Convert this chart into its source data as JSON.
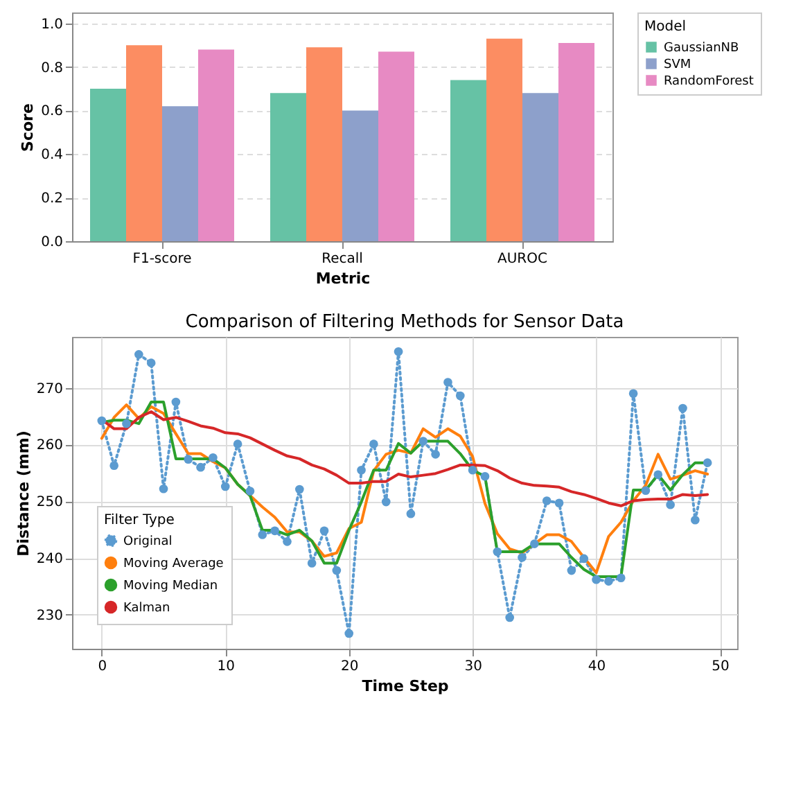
{
  "chart_data": [
    {
      "type": "bar",
      "xlabel": "Metric",
      "ylabel": "Score",
      "legend_title": "Model",
      "legend": "top right",
      "grid": "y",
      "categories": [
        "F1-score",
        "Recall",
        "AUROC"
      ],
      "ylim": [
        0,
        1.05
      ],
      "yticks": [
        {
          "value": 0,
          "label": "0.0"
        },
        0.2,
        0.4,
        0.6,
        0.8,
        {
          "value": 1,
          "label": "1.0"
        }
      ],
      "series": [
        {
          "name": "GaussianNB",
          "color": "#66c2a5",
          "values": [
            0.7,
            0.68,
            0.74
          ]
        },
        {
          "color": "#fc8d62",
          "values": [
            0.9,
            0.89,
            0.93
          ]
        },
        {
          "name": "SVM",
          "color": "#8da0cb",
          "values": [
            0.62,
            0.6,
            0.68
          ]
        },
        {
          "name": "RandomForest",
          "color": "#e78ac3",
          "values": [
            0.88,
            0.87,
            0.91
          ]
        }
      ]
    },
    {
      "type": "line",
      "title": "Comparison of Filtering Methods for Sensor Data",
      "xlabel": "Time Step",
      "ylabel": "Distance (mm)",
      "legend_title": "Filter Type",
      "legend": "bottom left",
      "grid": true,
      "x": [
        0,
        1,
        2,
        3,
        4,
        5,
        6,
        7,
        8,
        9,
        10,
        11,
        12,
        13,
        14,
        15,
        16,
        17,
        18,
        19,
        20,
        21,
        22,
        23,
        24,
        25,
        26,
        27,
        28,
        29,
        30,
        31,
        32,
        33,
        34,
        35,
        36,
        37,
        38,
        39,
        40,
        41,
        42,
        43,
        44,
        45,
        46,
        47,
        48,
        49
      ],
      "xlim": [
        -2.4,
        51.4
      ],
      "xticks": [
        0,
        10,
        20,
        30,
        40,
        50
      ],
      "ylim": [
        224,
        279
      ],
      "yticks": [
        230,
        240,
        250,
        260,
        270
      ],
      "series": [
        {
          "name": "Original",
          "color": "#5b9bd0",
          "marker": "circle",
          "line_style": "dotted",
          "values": [
            264.2,
            256.3,
            263.7,
            275.9,
            274.4,
            252.2,
            267.5,
            257.4,
            256.0,
            257.7,
            252.6,
            260.1,
            251.8,
            244.1,
            244.8,
            242.9,
            252.1,
            239.1,
            244.8,
            237.8,
            226.7,
            255.5,
            260.1,
            249.9,
            276.4,
            247.8,
            260.6,
            258.3,
            271.0,
            268.6,
            255.5,
            254.4,
            241.1,
            229.5,
            240.1,
            242.5,
            250.1,
            249.7,
            237.8,
            239.9,
            236.2,
            235.9,
            236.5,
            269.0,
            251.9,
            254.7,
            249.4,
            266.4,
            246.7,
            256.8
          ]
        },
        {
          "name": "Moving Average",
          "color": "#ff7f0e",
          "line_style": "solid",
          "values": [
            261.1,
            264.8,
            267.0,
            264.6,
            266.7,
            265.5,
            261.9,
            258.4,
            258.4,
            257.0,
            255.9,
            253.0,
            251.0,
            249.0,
            247.2,
            244.6,
            244.6,
            243.0,
            240.3,
            240.9,
            245.2,
            246.3,
            255.4,
            258.3,
            259.0,
            258.5,
            262.8,
            261.3,
            262.8,
            261.5,
            257.9,
            249.6,
            244.3,
            241.6,
            240.9,
            242.5,
            244.1,
            244.1,
            242.9,
            240.1,
            237.4,
            243.8,
            246.3,
            250.1,
            252.8,
            258.3,
            253.9,
            254.6,
            255.4,
            254.8
          ]
        },
        {
          "name": "Moving Median",
          "color": "#2ca02c",
          "line_style": "solid",
          "values": [
            263.9,
            264.3,
            264.3,
            263.7,
            267.5,
            267.5,
            257.5,
            257.5,
            257.5,
            257.5,
            255.9,
            253.0,
            251.0,
            244.9,
            244.9,
            244.1,
            244.9,
            243.0,
            239.1,
            239.1,
            244.9,
            249.9,
            255.5,
            255.5,
            260.2,
            258.5,
            260.6,
            260.6,
            260.6,
            258.4,
            255.5,
            254.4,
            241.1,
            241.1,
            241.1,
            242.5,
            242.5,
            242.5,
            240.1,
            238.0,
            236.7,
            236.7,
            236.7,
            252.0,
            252.0,
            254.7,
            252.0,
            254.7,
            256.8,
            256.8
          ]
        },
        {
          "name": "Kalman",
          "color": "#d62728",
          "line_style": "solid",
          "values": [
            264.4,
            262.8,
            262.8,
            264.8,
            265.8,
            264.4,
            264.8,
            264.1,
            263.3,
            262.9,
            262.1,
            261.9,
            261.2,
            260.1,
            259.0,
            258.0,
            257.5,
            256.4,
            255.7,
            254.6,
            253.2,
            253.2,
            253.5,
            253.5,
            254.8,
            254.3,
            254.6,
            254.9,
            255.6,
            256.4,
            256.4,
            256.3,
            255.4,
            254.1,
            253.2,
            252.8,
            252.7,
            252.5,
            251.7,
            251.2,
            250.5,
            249.7,
            249.2,
            250.1,
            250.3,
            250.4,
            250.4,
            251.2,
            251.0,
            251.2
          ]
        }
      ]
    }
  ]
}
